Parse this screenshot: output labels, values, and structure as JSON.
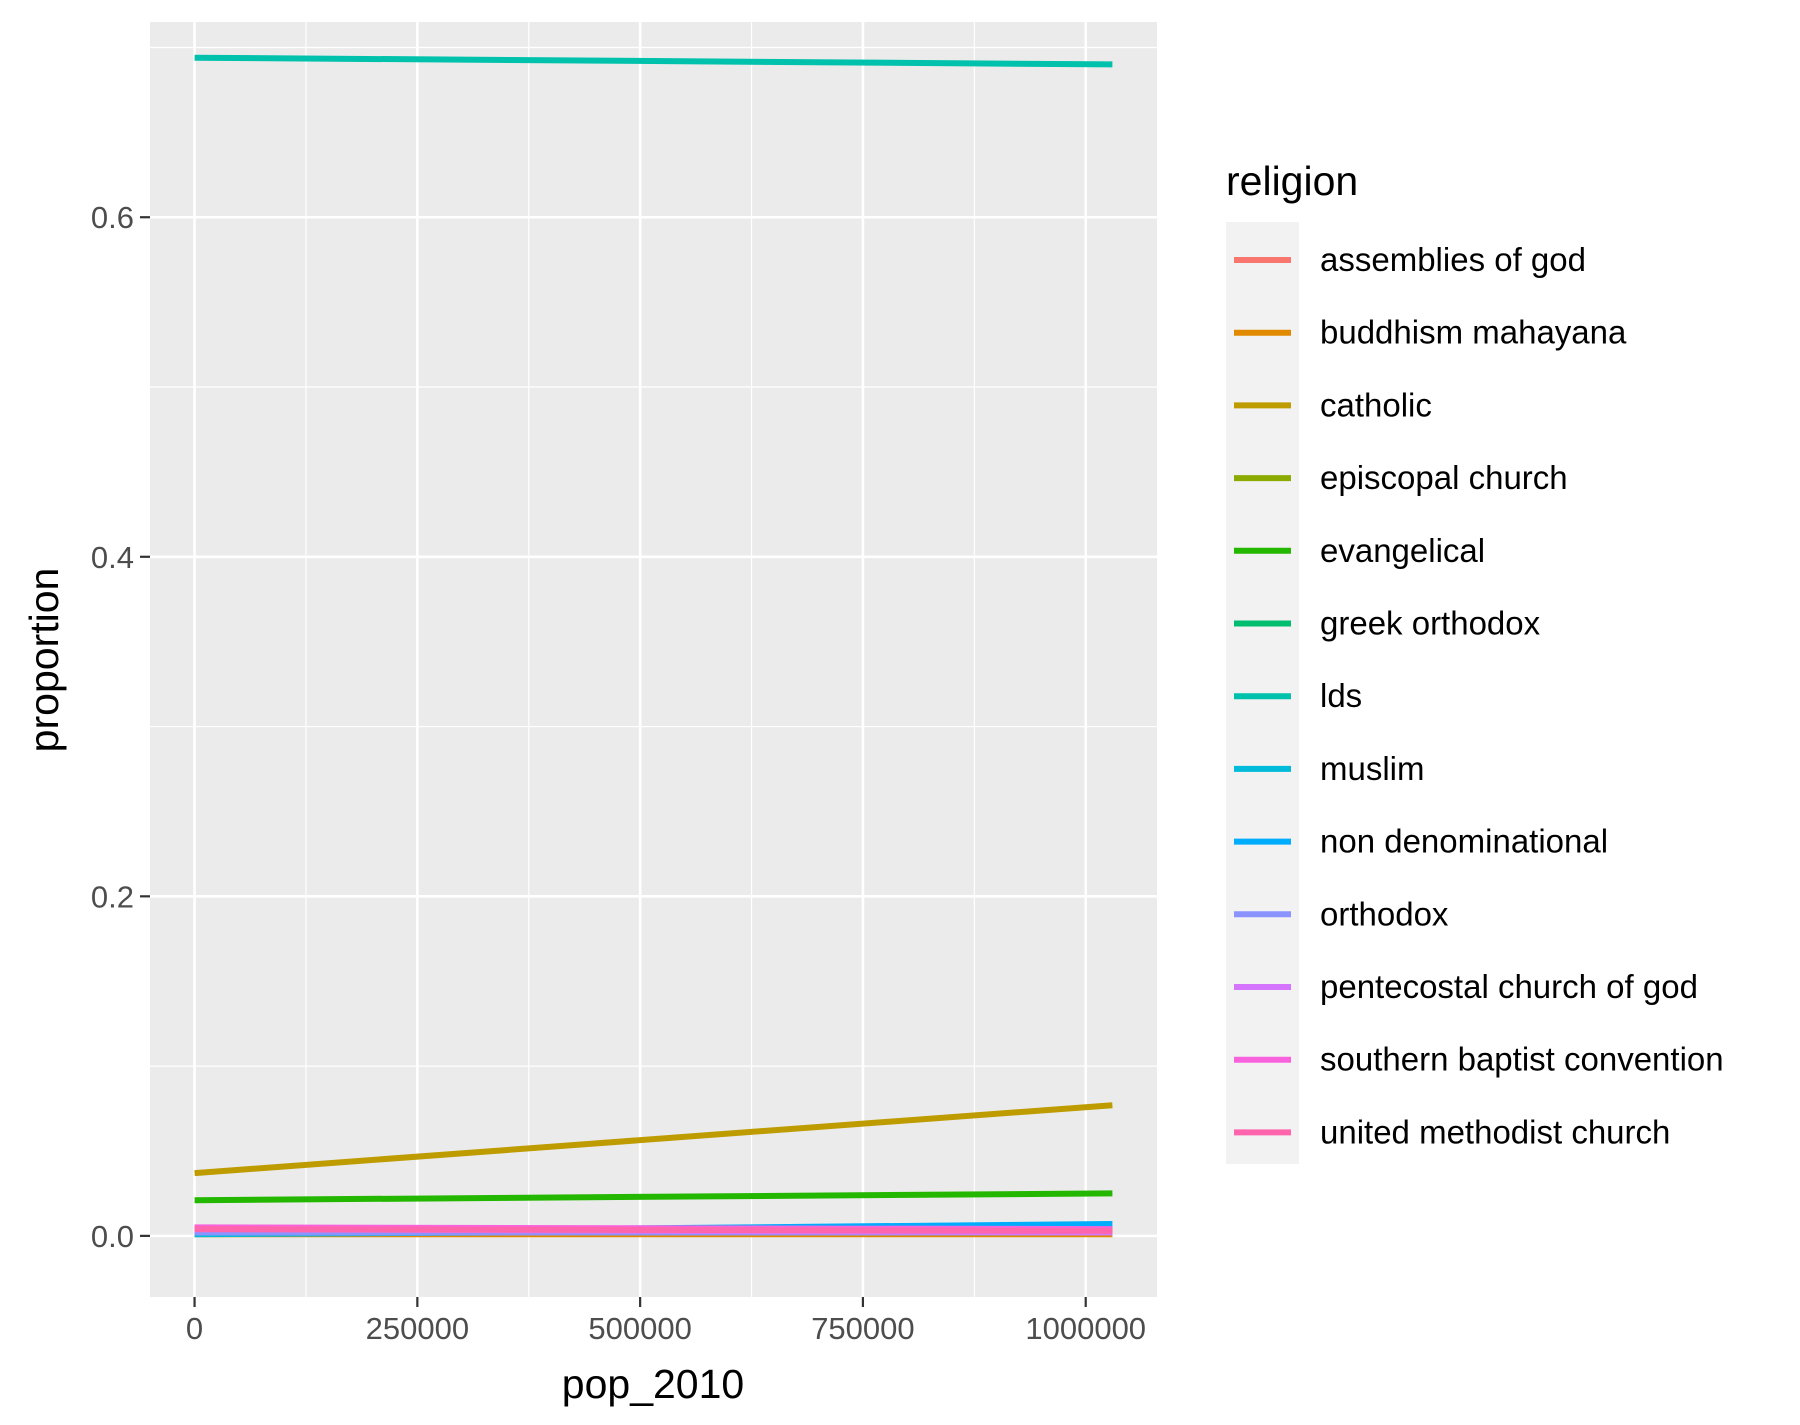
{
  "chart_data": {
    "type": "line",
    "xlabel": "pop_2010",
    "ylabel": "proportion",
    "xlim": [
      -50000,
      1080000
    ],
    "ylim": [
      -0.036,
      0.715
    ],
    "x_ticks": [
      0,
      250000,
      500000,
      750000,
      1000000
    ],
    "x_tick_labels": [
      "0",
      "250000",
      "500000",
      "750000",
      "1000000"
    ],
    "y_ticks": [
      0.0,
      0.2,
      0.4,
      0.6
    ],
    "y_tick_labels": [
      "0.0",
      "0.2",
      "0.4",
      "0.6"
    ],
    "grid": true,
    "legend": {
      "title": "religion",
      "position": "right"
    },
    "x": [
      0,
      1030000
    ],
    "series": [
      {
        "name": "assemblies of god",
        "color": "#F8766D",
        "values": [
          0.004,
          0.003
        ]
      },
      {
        "name": "buddhism mahayana",
        "color": "#E18A00",
        "values": [
          0.001,
          0.001
        ]
      },
      {
        "name": "catholic",
        "color": "#BE9C00",
        "values": [
          0.037,
          0.077
        ]
      },
      {
        "name": "episcopal church",
        "color": "#8CAB00",
        "values": [
          0.003,
          0.003
        ]
      },
      {
        "name": "evangelical",
        "color": "#24B700",
        "values": [
          0.021,
          0.025
        ]
      },
      {
        "name": "greek orthodox",
        "color": "#00BE70",
        "values": [
          0.002,
          0.002
        ]
      },
      {
        "name": "lds",
        "color": "#00C1AB",
        "values": [
          0.694,
          0.69
        ]
      },
      {
        "name": "muslim",
        "color": "#00BBDA",
        "values": [
          0.001,
          0.004
        ]
      },
      {
        "name": "non denominational",
        "color": "#00ACFC",
        "values": [
          0.002,
          0.007
        ]
      },
      {
        "name": "orthodox",
        "color": "#8B93FF",
        "values": [
          0.002,
          0.002
        ]
      },
      {
        "name": "pentecostal church of god",
        "color": "#D575FE",
        "values": [
          0.004,
          0.002
        ]
      },
      {
        "name": "southern baptist convention",
        "color": "#F962DD",
        "values": [
          0.005,
          0.004
        ]
      },
      {
        "name": "united methodist church",
        "color": "#FF65AC",
        "values": [
          0.004,
          0.003
        ]
      }
    ]
  }
}
